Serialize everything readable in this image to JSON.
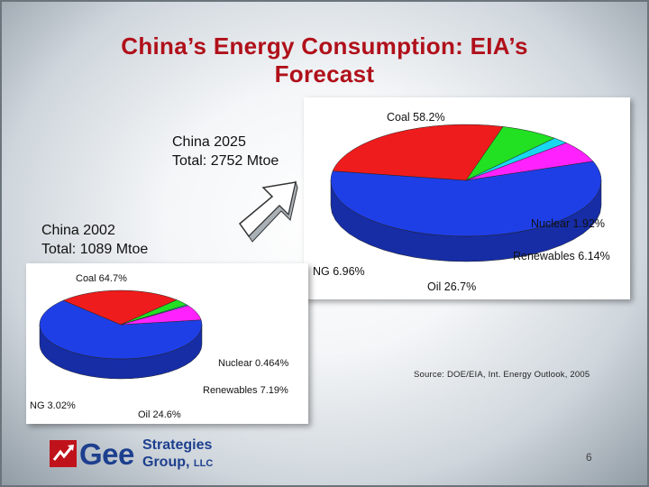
{
  "slide": {
    "title_line1": "China’s Energy Consumption: EIA’s",
    "title_line2": "Forecast",
    "source": "Source: DOE/EIA, Int. Energy Outlook, 2005",
    "page_number": "6",
    "logo": {
      "word": "Gee",
      "line1": "Strategies",
      "line2": "Group",
      "suffix": "LLC"
    },
    "colors": {
      "title": "#b0101a",
      "coal": "#1f3fe6",
      "oil": "#ee1c1c",
      "ng": "#22e022",
      "nuclear": "#18d8f0",
      "renewables": "#ff22ff",
      "logo_red": "#c0121b",
      "logo_blue": "#1d3f8e"
    }
  },
  "chart_data": [
    {
      "type": "pie",
      "caption_line1": "China 2025",
      "caption_line2": "Total: 2752 Mtoe",
      "labels": [
        "Coal 58.2%",
        "Oil 26.7%",
        "NG 6.96%",
        "Nuclear 1.92%",
        "Renewables 6.14%"
      ],
      "categories": [
        "Coal",
        "Oil",
        "NG",
        "Nuclear",
        "Renewables"
      ],
      "values": [
        58.2,
        26.7,
        6.96,
        1.92,
        6.14
      ]
    },
    {
      "type": "pie",
      "caption_line1": "China 2002",
      "caption_line2": "Total: 1089 Mtoe",
      "labels": [
        "Coal 64.7%",
        "Oil 24.6%",
        "NG 3.02%",
        "Nuclear 0.464%",
        "Renewables 7.19%"
      ],
      "categories": [
        "Coal",
        "Oil",
        "NG",
        "Nuclear",
        "Renewables"
      ],
      "values": [
        64.7,
        24.6,
        3.02,
        0.464,
        7.19
      ]
    }
  ]
}
